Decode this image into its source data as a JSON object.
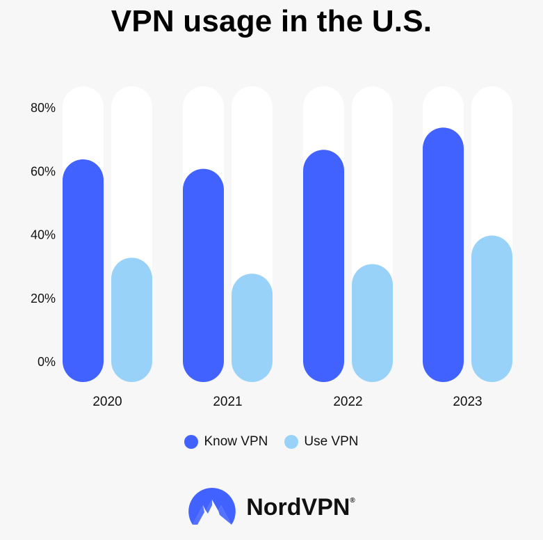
{
  "chart_data": {
    "type": "bar",
    "title": "VPN usage in the U.S.",
    "categories": [
      "2020",
      "2021",
      "2022",
      "2023"
    ],
    "series": [
      {
        "name": "Know VPN",
        "values": [
          57,
          54,
          60,
          67
        ],
        "color": "#4262ff"
      },
      {
        "name": "Use VPN",
        "values": [
          26,
          21,
          24,
          33
        ],
        "color": "#98d2f8"
      }
    ],
    "ylim": [
      0,
      80
    ],
    "yticks": [
      "0%",
      "20%",
      "40%",
      "60%",
      "80%"
    ],
    "grid": false,
    "legend_position": "bottom-center",
    "track_color": "#ffffff"
  },
  "brand": {
    "name": "NordVPN",
    "mark": "®",
    "logo_icon": "nordvpn-mountain-icon",
    "color": "#4262ff"
  }
}
